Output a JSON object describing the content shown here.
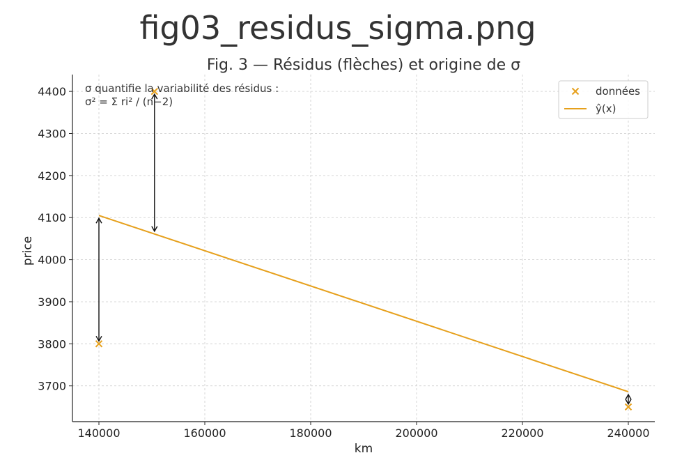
{
  "page": {
    "file_title": "fig03_residus_sigma.png"
  },
  "colors": {
    "series": "#e6a01c",
    "arrow": "#111111",
    "grid": "#cccccc",
    "axis": "#222222"
  },
  "chart_data": {
    "type": "scatter",
    "title": "Fig. 3 — Résidus (flèches) et origine de σ",
    "xlabel": "km",
    "ylabel": "price",
    "xlim": [
      135000,
      245000
    ],
    "ylim": [
      3615,
      4440
    ],
    "xticks": [
      140000,
      160000,
      180000,
      200000,
      220000,
      240000
    ],
    "yticks": [
      3700,
      3800,
      3900,
      4000,
      4100,
      4200,
      4300,
      4400
    ],
    "grid": true,
    "legend_position": "top-right",
    "annotation_lines": [
      "σ quantifie la variabilité des résidus :",
      "σ² = Σ ri² / (n−2)"
    ],
    "series": [
      {
        "name": "données",
        "kind": "scatter",
        "marker": "x",
        "x": [
          140000,
          150500,
          240000
        ],
        "y": [
          3800,
          4400,
          3650
        ]
      },
      {
        "name": "ŷ(x)",
        "kind": "line",
        "x": [
          140000,
          240000
        ],
        "y": [
          4105,
          3686
        ]
      }
    ],
    "residuals": [
      {
        "x": 140000,
        "y_data": 3800,
        "y_fit": 4105
      },
      {
        "x": 150500,
        "y_data": 4400,
        "y_fit": 4061
      },
      {
        "x": 240000,
        "y_data": 3650,
        "y_fit": 3686
      }
    ]
  }
}
